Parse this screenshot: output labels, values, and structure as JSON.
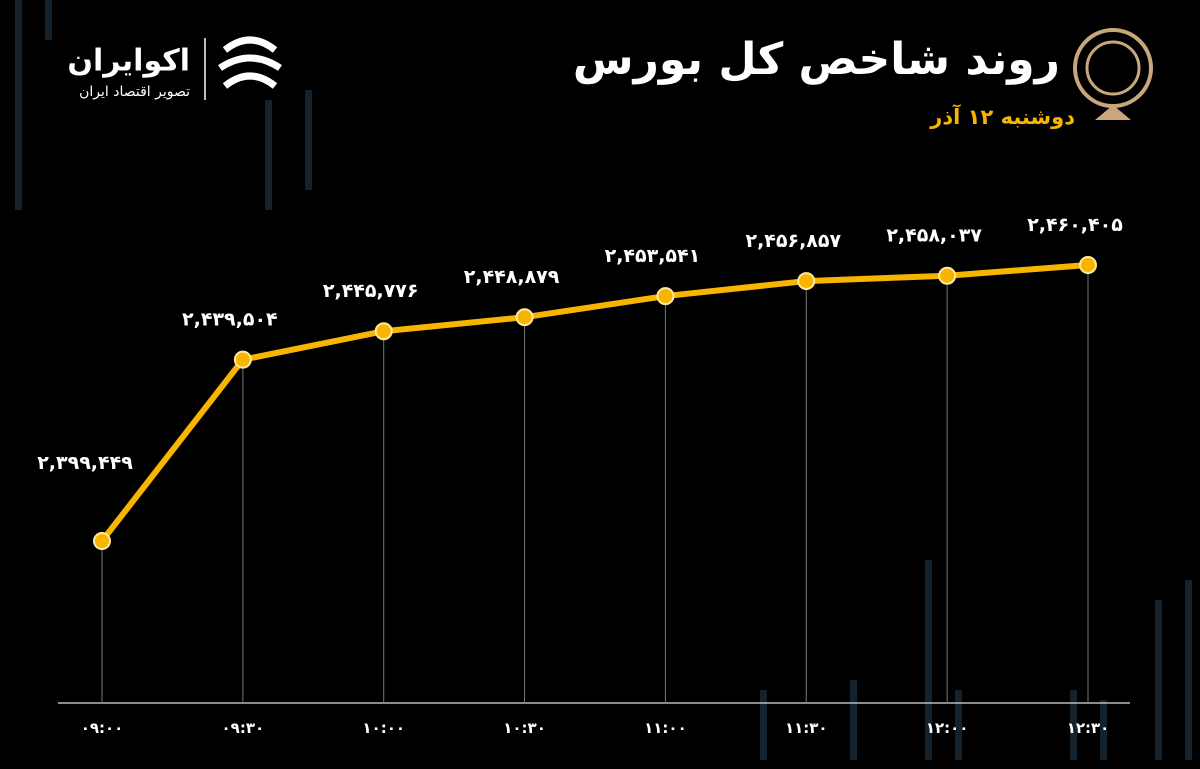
{
  "brand": {
    "name": "اکوایران",
    "tagline": "تصویر اقتصاد ایران"
  },
  "chart_data": {
    "type": "line",
    "title": "روند شاخص کل بورس",
    "subtitle": "دوشنبه ۱۲ آذر",
    "categories": [
      "۰۹:۰۰",
      "۰۹:۳۰",
      "۱۰:۰۰",
      "۱۰:۳۰",
      "۱۱:۰۰",
      "۱۱:۳۰",
      "۱۲:۰۰",
      "۱۲:۳۰"
    ],
    "values": [
      2399449,
      2439504,
      2445776,
      2448879,
      2453541,
      2456857,
      2458037,
      2460405
    ],
    "value_labels": [
      "۲,۳۹۹,۴۴۹",
      "۲,۴۳۹,۵۰۴",
      "۲,۴۴۵,۷۷۶",
      "۲,۴۴۸,۸۷۹",
      "۲,۴۵۳,۵۴۱",
      "۲,۴۵۶,۸۵۷",
      "۲,۴۵۸,۰۳۷",
      "۲,۴۶۰,۴۰۵"
    ],
    "color": "#f7b500"
  }
}
